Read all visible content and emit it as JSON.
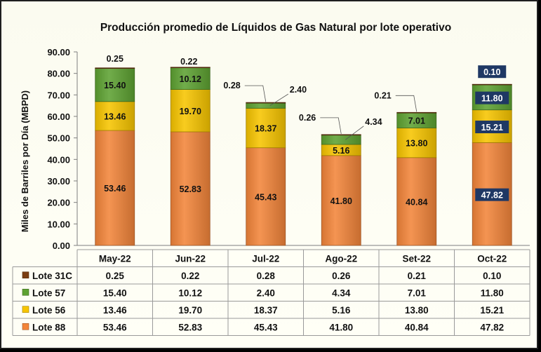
{
  "chart_data": {
    "type": "bar",
    "stacked": true,
    "title": "Producción promedio de Líquidos de Gas Natural por lote operativo",
    "ylabel": "Miles de Barriles por Día (MBPD)",
    "xlabel": "",
    "ylim": [
      0,
      90
    ],
    "ytick_step": 10,
    "ytick_labels": [
      "0.00",
      "10.00",
      "20.00",
      "30.00",
      "40.00",
      "50.00",
      "60.00",
      "70.00",
      "80.00",
      "90.00"
    ],
    "grid": false,
    "legend": "data-table",
    "categories": [
      "May-22",
      "Jun-22",
      "Jul-22",
      "Ago-22",
      "Set-22",
      "Oct-22"
    ],
    "highlight_category": "Oct-22",
    "series": [
      {
        "name": "Lote 88",
        "color": "#f3853a",
        "values": [
          53.46,
          52.83,
          45.43,
          41.8,
          40.84,
          47.82
        ]
      },
      {
        "name": "Lote 56",
        "color": "#f7c500",
        "values": [
          13.46,
          19.7,
          18.37,
          5.16,
          13.8,
          15.21
        ]
      },
      {
        "name": "Lote 57",
        "color": "#5ea232",
        "values": [
          15.4,
          10.12,
          2.4,
          4.34,
          7.01,
          11.8
        ]
      },
      {
        "name": "Lote 31C",
        "color": "#7a3d12",
        "values": [
          0.25,
          0.22,
          0.28,
          0.26,
          0.21,
          0.1
        ]
      }
    ],
    "table_rows": [
      {
        "name": "Lote 31C",
        "color": "#7a3d12",
        "values": [
          "0.25",
          "0.22",
          "0.28",
          "0.26",
          "0.21",
          "0.10"
        ]
      },
      {
        "name": "Lote 57",
        "color": "#5ea232",
        "values": [
          "15.40",
          "10.12",
          "2.40",
          "4.34",
          "7.01",
          "11.80"
        ]
      },
      {
        "name": "Lote 56",
        "color": "#f7c500",
        "values": [
          "13.46",
          "19.70",
          "18.37",
          "5.16",
          "13.80",
          "15.21"
        ]
      },
      {
        "name": "Lote 88",
        "color": "#f3853a",
        "values": [
          "53.46",
          "52.83",
          "45.43",
          "41.80",
          "40.84",
          "47.82"
        ]
      }
    ],
    "segment_labels": [
      [
        "53.46",
        "13.46",
        "15.40",
        "0.25"
      ],
      [
        "52.83",
        "19.70",
        "10.12",
        "0.22"
      ],
      [
        "45.43",
        "18.37",
        "2.40",
        "0.28"
      ],
      [
        "41.80",
        "5.16",
        "4.34",
        "0.26"
      ],
      [
        "40.84",
        "13.80",
        "7.01",
        "0.21"
      ],
      [
        "47.82",
        "15.21",
        "11.80",
        "0.10"
      ]
    ],
    "highlight_label_bg": "#1f3864"
  }
}
